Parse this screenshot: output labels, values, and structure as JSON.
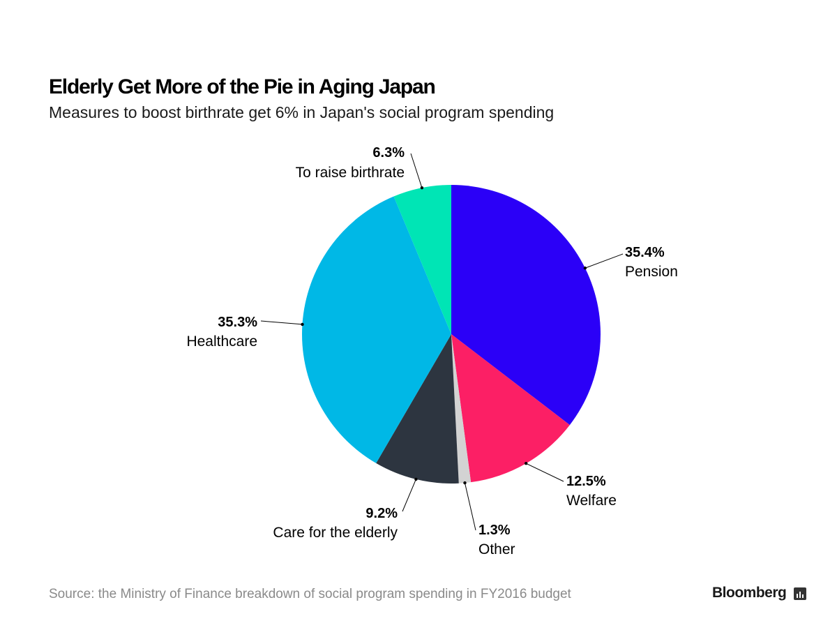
{
  "chart_data": {
    "type": "pie",
    "title": "Elderly Get More of the Pie in Aging Japan",
    "subtitle": "Measures to boost birthrate get 6% in Japan's social program spending",
    "slices": [
      {
        "label": "Pension",
        "value": 35.4,
        "value_label": "35.4%",
        "color": "#2b00f7"
      },
      {
        "label": "Welfare",
        "value": 12.5,
        "value_label": "12.5%",
        "color": "#fc1f65"
      },
      {
        "label": "Other",
        "value": 1.3,
        "value_label": "1.3%",
        "color": "#d3d3d3"
      },
      {
        "label": "Care for the elderly",
        "value": 9.2,
        "value_label": "9.2%",
        "color": "#2d3540"
      },
      {
        "label": "Healthcare",
        "value": 35.3,
        "value_label": "35.3%",
        "color": "#00b8e6"
      },
      {
        "label": "To raise birthrate",
        "value": 6.3,
        "value_label": "6.3%",
        "color": "#00e5b5"
      }
    ],
    "start": "12 o'clock",
    "direction": "clockwise"
  },
  "source": "Source: the Ministry of Finance breakdown of social program spending in FY2016 budget",
  "brand": "Bloomberg",
  "brand_icon": "bloomberg-terminal-icon"
}
